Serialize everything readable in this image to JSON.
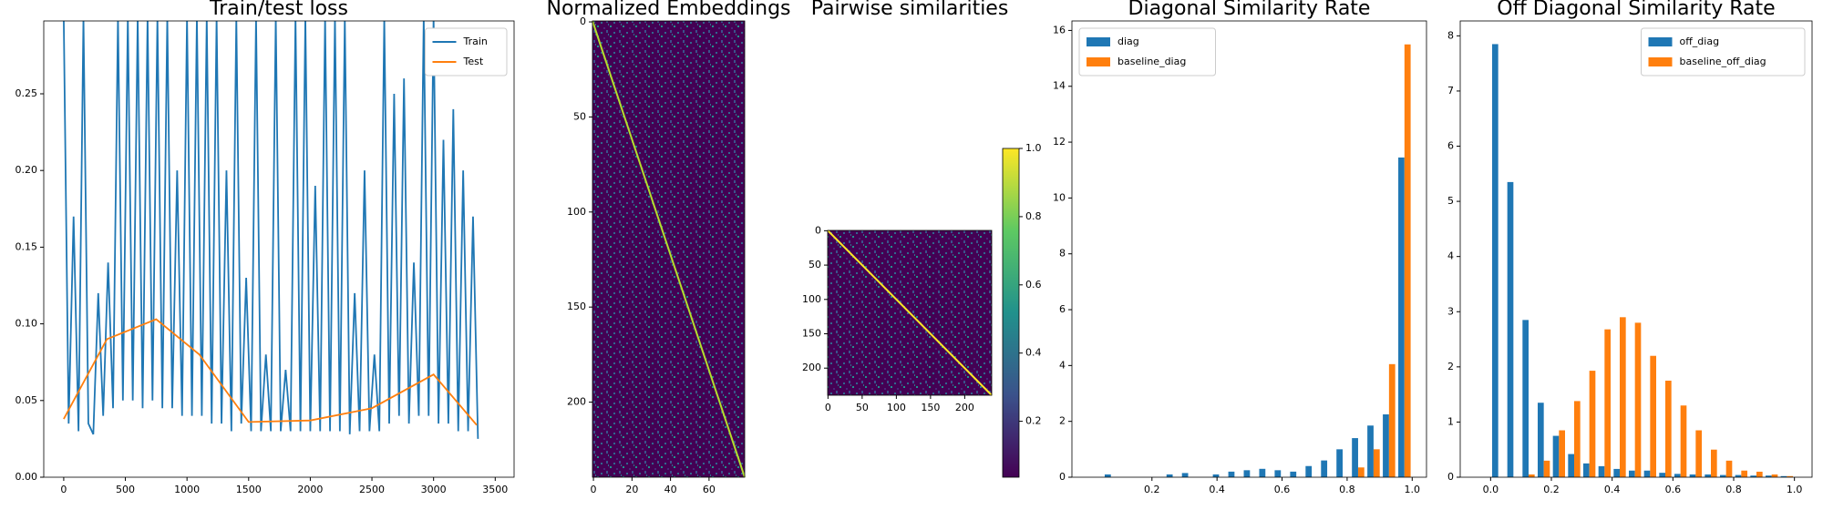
{
  "chart_data": [
    {
      "type": "line",
      "title": "Train/test loss",
      "xlim": [
        -162,
        3653
      ],
      "ylim": [
        0,
        0.2975
      ],
      "xticks": [
        0,
        500,
        1000,
        1500,
        2000,
        2500,
        3000,
        3500
      ],
      "yticks": [
        {
          "value": 0,
          "label": "0.00"
        },
        {
          "value": 0.05,
          "label": "0.05"
        },
        {
          "value": 0.1,
          "label": "0.10"
        },
        {
          "value": 0.15,
          "label": "0.15"
        },
        {
          "value": 0.2,
          "label": "0.20"
        },
        {
          "value": 0.25,
          "label": "0.25"
        }
      ],
      "legend": "upper right",
      "series": [
        {
          "name": "Train",
          "color": "#1f77b4",
          "x": [
            0,
            40,
            80,
            120,
            160,
            200,
            240,
            280,
            320,
            360,
            400,
            440,
            480,
            520,
            560,
            600,
            640,
            680,
            720,
            760,
            800,
            840,
            880,
            920,
            960,
            1000,
            1040,
            1080,
            1120,
            1160,
            1200,
            1240,
            1280,
            1320,
            1360,
            1400,
            1440,
            1480,
            1520,
            1560,
            1600,
            1640,
            1680,
            1720,
            1760,
            1800,
            1840,
            1880,
            1920,
            1960,
            2000,
            2040,
            2080,
            2120,
            2160,
            2200,
            2240,
            2280,
            2320,
            2360,
            2400,
            2440,
            2480,
            2520,
            2560,
            2600,
            2640,
            2680,
            2720,
            2760,
            2800,
            2840,
            2880,
            2920,
            2960,
            3000,
            3040,
            3080,
            3120,
            3160,
            3200,
            3240,
            3280,
            3320,
            3360
          ],
          "values": [
            0.3,
            0.035,
            0.17,
            0.03,
            0.3,
            0.035,
            0.028,
            0.12,
            0.04,
            0.14,
            0.045,
            0.3,
            0.05,
            0.3,
            0.05,
            0.3,
            0.045,
            0.3,
            0.05,
            0.3,
            0.045,
            0.3,
            0.045,
            0.2,
            0.04,
            0.3,
            0.04,
            0.3,
            0.04,
            0.3,
            0.035,
            0.3,
            0.035,
            0.2,
            0.03,
            0.3,
            0.035,
            0.13,
            0.03,
            0.3,
            0.03,
            0.08,
            0.03,
            0.3,
            0.03,
            0.07,
            0.03,
            0.3,
            0.03,
            0.3,
            0.03,
            0.19,
            0.03,
            0.3,
            0.03,
            0.3,
            0.03,
            0.3,
            0.028,
            0.12,
            0.03,
            0.2,
            0.03,
            0.08,
            0.03,
            0.3,
            0.035,
            0.25,
            0.04,
            0.26,
            0.035,
            0.14,
            0.04,
            0.3,
            0.04,
            0.3,
            0.035,
            0.22,
            0.035,
            0.24,
            0.03,
            0.2,
            0.03,
            0.17,
            0.025
          ]
        },
        {
          "name": "Test",
          "color": "#ff7f0e",
          "x": [
            0,
            350,
            750,
            1100,
            1500,
            2000,
            2500,
            3000,
            3350
          ],
          "values": [
            0.038,
            0.09,
            0.103,
            0.08,
            0.036,
            0.037,
            0.045,
            0.067,
            0.034
          ]
        }
      ]
    },
    {
      "type": "heatmap",
      "title": "Normalized Embeddings",
      "xlim": [
        -0.5,
        78.5
      ],
      "ylim": [
        239.5,
        -0.5
      ],
      "xticks": [
        0,
        20,
        40,
        60
      ],
      "yticks": [
        0,
        50,
        100,
        150,
        200
      ]
    },
    {
      "type": "heatmap",
      "title": "Pairwise similarities",
      "xlim": [
        -0.5,
        239.5
      ],
      "ylim": [
        239.5,
        -0.5
      ],
      "xticks": [
        0,
        50,
        100,
        150,
        200
      ],
      "yticks": [
        0,
        50,
        100,
        150,
        200
      ],
      "colorbar": {
        "ylim": [
          0.036,
          1.0
        ],
        "yticks": [
          0.2,
          0.4,
          0.6,
          0.8,
          {
            "value": 1.0,
            "label": "1.0"
          }
        ]
      }
    },
    {
      "type": "histogram",
      "title": "Diagonal Similarity Rate",
      "xlim": [
        -0.046,
        1.044
      ],
      "ylim": [
        0,
        16.34
      ],
      "xticks": [
        0.2,
        0.4,
        0.6,
        0.8,
        {
          "value": 1.0,
          "label": "1.0"
        }
      ],
      "yticks": [
        0,
        2,
        4,
        6,
        8,
        10,
        12,
        14,
        16
      ],
      "legend": "upper left",
      "bins": [
        0.05,
        0.0975,
        0.145,
        0.1925,
        0.24,
        0.2875,
        0.335,
        0.3825,
        0.43,
        0.4775,
        0.525,
        0.5725,
        0.62,
        0.6675,
        0.715,
        0.7625,
        0.81,
        0.8575,
        0.905,
        0.9525,
        1.0
      ],
      "series": [
        {
          "name": "diag",
          "color": "#1f77b4",
          "values": [
            0.1,
            0,
            0,
            0,
            0.1,
            0.15,
            0,
            0.1,
            0.2,
            0.25,
            0.3,
            0.25,
            0.2,
            0.4,
            0.6,
            1.0,
            1.4,
            1.85,
            2.25,
            11.45
          ]
        },
        {
          "name": "baseline_diag",
          "color": "#ff7f0e",
          "values": [
            0,
            0,
            0,
            0,
            0,
            0,
            0,
            0,
            0,
            0,
            0,
            0,
            0,
            0,
            0,
            0,
            0.35,
            1.0,
            4.05,
            15.5
          ]
        }
      ]
    },
    {
      "type": "histogram",
      "title": "Off Diagonal Similarity Rate",
      "xlim": [
        -0.1,
        1.058
      ],
      "ylim": [
        0,
        8.27
      ],
      "xticks": [
        {
          "value": 0,
          "label": "0.0"
        },
        0.2,
        0.4,
        0.6,
        0.8,
        {
          "value": 1.0,
          "label": "1.0"
        }
      ],
      "yticks": [
        0,
        1,
        2,
        3,
        4,
        5,
        6,
        7,
        8
      ],
      "legend": "upper right",
      "bins": [
        0,
        0.05,
        0.1,
        0.15,
        0.2,
        0.25,
        0.3,
        0.35,
        0.4,
        0.45,
        0.5,
        0.55,
        0.6,
        0.65,
        0.7,
        0.75,
        0.8,
        0.85,
        0.9,
        0.95,
        1.0
      ],
      "series": [
        {
          "name": "off_diag",
          "color": "#1f77b4",
          "values": [
            7.85,
            5.35,
            2.85,
            1.35,
            0.75,
            0.42,
            0.25,
            0.2,
            0.15,
            0.12,
            0.12,
            0.08,
            0.06,
            0.05,
            0.05,
            0.04,
            0.04,
            0.03,
            0.03,
            0.02
          ]
        },
        {
          "name": "baseline_off_diag",
          "color": "#ff7f0e",
          "values": [
            0,
            0,
            0.05,
            0.3,
            0.85,
            1.38,
            1.93,
            2.68,
            2.9,
            2.8,
            2.2,
            1.75,
            1.3,
            0.85,
            0.5,
            0.3,
            0.12,
            0.1,
            0.05,
            0.02
          ]
        }
      ]
    }
  ]
}
